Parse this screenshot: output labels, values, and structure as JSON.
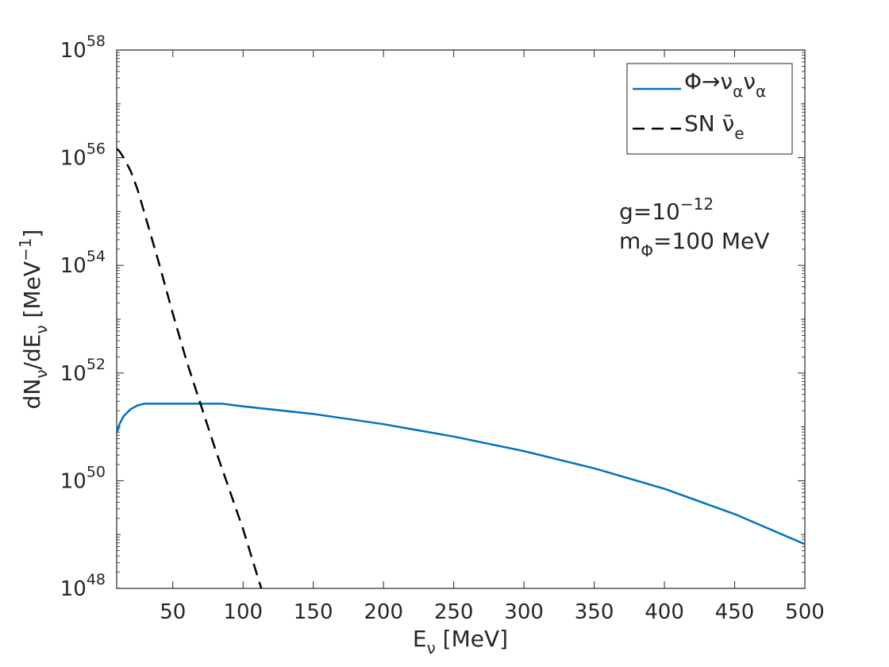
{
  "chart_data": {
    "type": "line",
    "y_scale": "log",
    "xlim": [
      10,
      500
    ],
    "ylim_exponent": [
      48,
      58
    ],
    "x_ticks": [
      "50",
      "100",
      "150",
      "200",
      "250",
      "300",
      "350",
      "400",
      "450",
      "500"
    ],
    "y_tick_base": "10",
    "y_tick_exponents": [
      "48",
      "50",
      "52",
      "54",
      "56",
      "58"
    ],
    "xlabel": {
      "main": "E",
      "sub": "ν",
      "rest": " [MeV]"
    },
    "ylabel": {
      "p1": "dN",
      "s1": "ν",
      "p2": "/dE",
      "s2": "ν",
      "p3": " [MeV",
      "sup": "−1",
      "p4": "]"
    },
    "legend_position": "top-right",
    "annotation": {
      "line1_main": "g=10",
      "line1_sup": "−12",
      "line2_main": "m",
      "line2_sub": "Φ",
      "line2_rest": "=100 MeV"
    },
    "series": [
      {
        "name": "Φ→ν_α ν_α",
        "legend": {
          "a": "Φ→ν",
          "sub1": "α",
          "b": "ν",
          "sub2": "α"
        },
        "color": "#0072BD",
        "style": "solid",
        "x": [
          10,
          12,
          15,
          20,
          25,
          30,
          40,
          50,
          60,
          70,
          80,
          85,
          100,
          150,
          200,
          250,
          300,
          350,
          400,
          450,
          500
        ],
        "log10_y": [
          50.88,
          51.05,
          51.2,
          51.33,
          51.4,
          51.43,
          51.43,
          51.43,
          51.43,
          51.43,
          51.43,
          51.43,
          51.38,
          51.24,
          51.05,
          50.82,
          50.55,
          50.23,
          49.85,
          49.38,
          48.82
        ]
      },
      {
        "name": "SN ν̄_e",
        "legend": {
          "a": "SN ν̄",
          "sub1": "e"
        },
        "color": "#000000",
        "style": "dashed",
        "x": [
          10,
          12,
          15,
          20,
          25,
          30,
          40,
          50,
          60,
          70,
          80,
          90,
          100,
          110,
          113
        ],
        "log10_y": [
          56.17,
          56.12,
          56.0,
          55.75,
          55.4,
          54.95,
          54.05,
          53.1,
          52.2,
          51.4,
          50.6,
          49.85,
          49.1,
          48.25,
          48.0
        ]
      }
    ]
  }
}
